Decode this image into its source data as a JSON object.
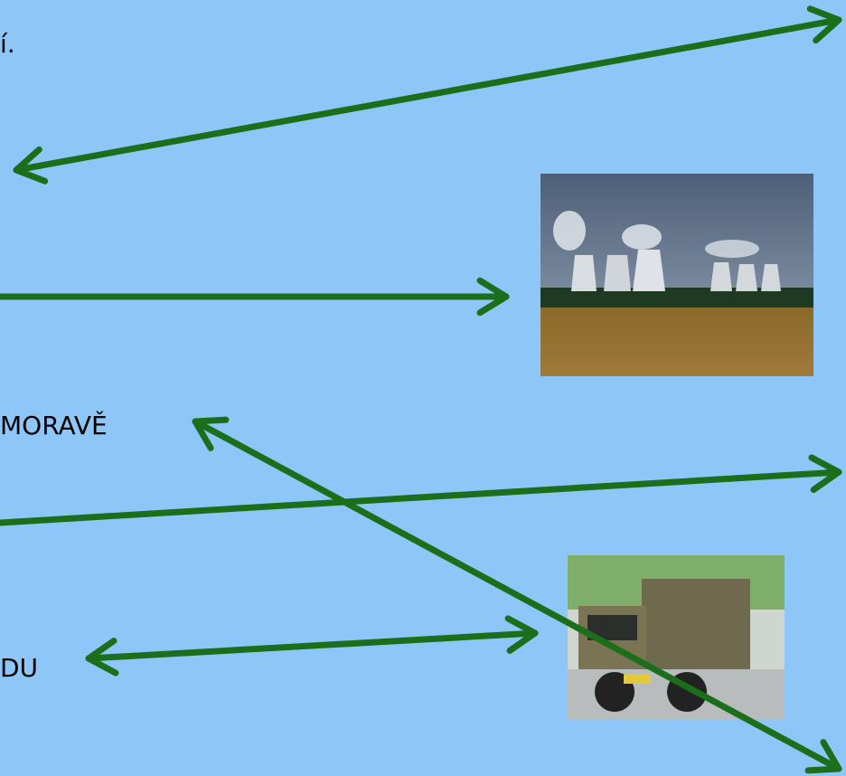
{
  "labels": [
    "í.",
    "MORAVĚ",
    "DU"
  ]
}
